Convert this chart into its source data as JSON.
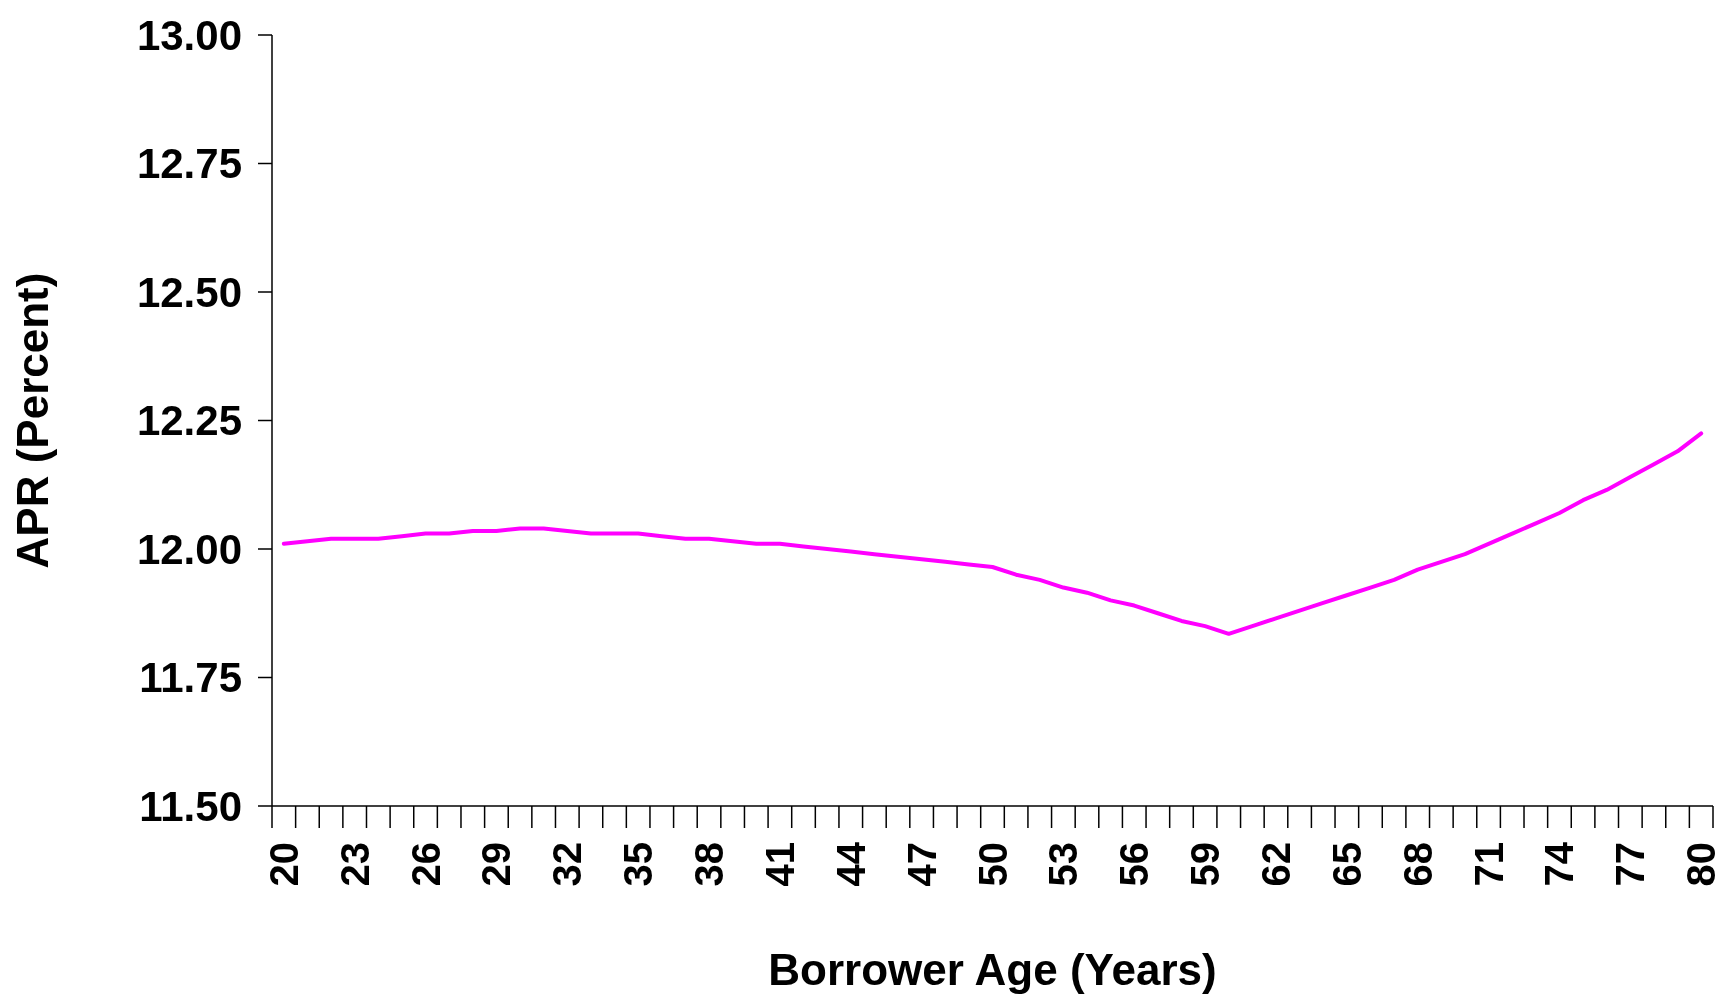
{
  "chart_data": {
    "type": "line",
    "xlabel": "Borrower Age (Years)",
    "ylabel": "APR (Percent)",
    "categories": [
      "20",
      null,
      null,
      "23",
      null,
      null,
      "26",
      null,
      null,
      "29",
      null,
      null,
      "32",
      null,
      null,
      "35",
      null,
      null,
      "38",
      null,
      null,
      "41",
      null,
      null,
      "44",
      null,
      null,
      "47",
      null,
      null,
      "50",
      null,
      null,
      "53",
      null,
      null,
      "56",
      null,
      null,
      "59",
      null,
      null,
      "62",
      null,
      null,
      "65",
      null,
      null,
      "68",
      null,
      null,
      "71",
      null,
      null,
      "74",
      null,
      null,
      "77",
      null,
      null,
      "80"
    ],
    "series": [
      {
        "color": "#ff00ff",
        "values": [
          12.01,
          12.015,
          12.02,
          12.02,
          12.02,
          12.025,
          12.03,
          12.03,
          12.035,
          12.035,
          12.04,
          12.04,
          12.035,
          12.03,
          12.03,
          12.03,
          12.025,
          12.02,
          12.02,
          12.015,
          12.01,
          12.01,
          12.005,
          12.0,
          11.995,
          11.99,
          11.985,
          11.98,
          11.975,
          11.97,
          11.965,
          11.95,
          11.94,
          11.925,
          11.915,
          11.9,
          11.89,
          11.875,
          11.86,
          11.85,
          11.835,
          11.85,
          11.865,
          11.88,
          11.895,
          11.91,
          11.925,
          11.94,
          11.96,
          11.975,
          11.99,
          12.01,
          12.03,
          12.05,
          12.07,
          12.095,
          12.115,
          12.14,
          12.165,
          12.19,
          12.225
        ]
      }
    ],
    "ylim": [
      11.5,
      13.0
    ],
    "yticks": [
      {
        "value": 11.5,
        "label": "11.50"
      },
      {
        "value": 11.75,
        "label": "11.75"
      },
      {
        "value": 12.0,
        "label": "12.00"
      },
      {
        "value": 12.25,
        "label": "12.25"
      },
      {
        "value": 12.5,
        "label": "12.50"
      },
      {
        "value": 12.75,
        "label": "12.75"
      },
      {
        "value": 13.0,
        "label": "13.00"
      }
    ],
    "grid": false,
    "marker": "none",
    "line_style": "solid"
  }
}
